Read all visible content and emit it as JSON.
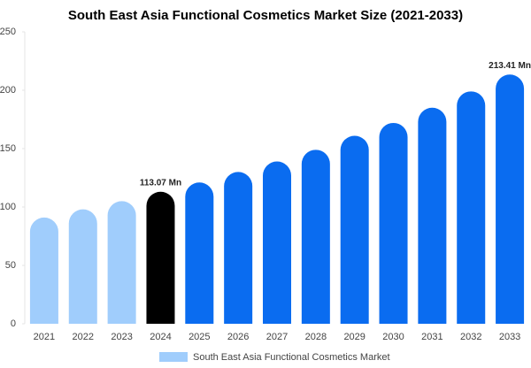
{
  "chart_data": {
    "type": "bar",
    "title": "South East Asia Functional Cosmetics Market Size (2021-2033)",
    "categories": [
      "2021",
      "2022",
      "2023",
      "2024",
      "2025",
      "2026",
      "2027",
      "2028",
      "2029",
      "2030",
      "2031",
      "2032",
      "2033"
    ],
    "series": [
      {
        "name": "South East Asia Functional Cosmetics Market",
        "color": "#a0cdfc",
        "colors": [
          "#a0cdfc",
          "#a0cdfc",
          "#a0cdfc",
          "#000000",
          "#0a6cf0",
          "#0a6cf0",
          "#0a6cf0",
          "#0a6cf0",
          "#0a6cf0",
          "#0a6cf0",
          "#0a6cf0",
          "#0a6cf0",
          "#0a6cf0"
        ],
        "values": [
          91,
          98,
          105,
          113.07,
          121,
          130,
          139,
          149,
          161,
          172,
          185,
          199,
          213.41
        ],
        "value_labels": [
          null,
          null,
          null,
          "113.07 Mn",
          null,
          null,
          null,
          null,
          null,
          null,
          null,
          null,
          "213.41 Mn"
        ]
      }
    ],
    "ylim": [
      0,
      250
    ],
    "yticks": [
      0,
      50,
      100,
      150,
      200,
      250
    ],
    "grid": false
  }
}
